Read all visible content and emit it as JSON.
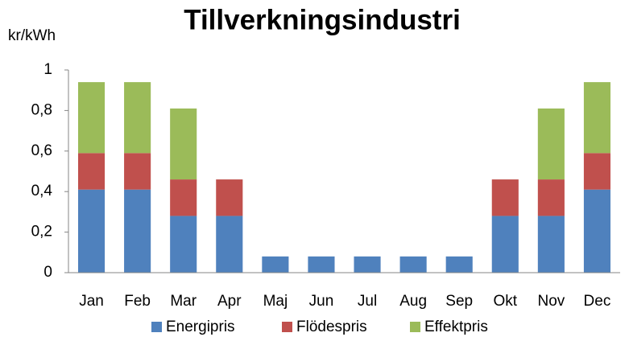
{
  "chart_data": {
    "type": "stacked_bar",
    "title": "Tillverkningsindustri",
    "y_label": "kr/kWh",
    "categories": [
      "Jan",
      "Feb",
      "Mar",
      "Apr",
      "Maj",
      "Jun",
      "Jul",
      "Aug",
      "Sep",
      "Okt",
      "Nov",
      "Dec"
    ],
    "series": [
      {
        "name": "Energipris",
        "color": "#4f81bd",
        "values": [
          0.41,
          0.41,
          0.28,
          0.28,
          0.08,
          0.08,
          0.08,
          0.08,
          0.08,
          0.28,
          0.28,
          0.41
        ]
      },
      {
        "name": "Flödespris",
        "color": "#c0504d",
        "values": [
          0.18,
          0.18,
          0.18,
          0.18,
          0,
          0,
          0,
          0,
          0,
          0.18,
          0.18,
          0.18
        ]
      },
      {
        "name": "Effektpris",
        "color": "#9bbb59",
        "values": [
          0.35,
          0.35,
          0.35,
          0,
          0,
          0,
          0,
          0,
          0,
          0,
          0.35,
          0.35
        ]
      }
    ],
    "ylim": [
      0,
      1
    ],
    "yticks": [
      0,
      {
        "value": 0.2,
        "label": "0,2"
      },
      {
        "value": 0.4,
        "label": "0,4"
      },
      {
        "value": 0.6,
        "label": "0,6"
      },
      {
        "value": 0.8,
        "label": "0,8"
      },
      1
    ],
    "grid": false,
    "legend": "bottom"
  }
}
